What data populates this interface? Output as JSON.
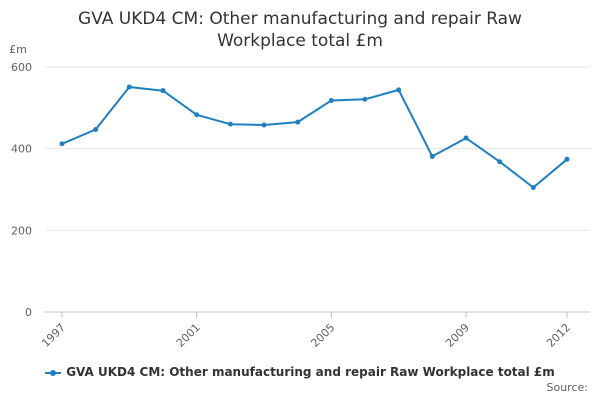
{
  "chart_data": {
    "type": "line",
    "title_line1": "GVA UKD4 CM: Other manufacturing and repair Raw",
    "title_line2": "Workplace total £m",
    "ylabel": "£m",
    "xlabel": "",
    "ylim": [
      0,
      600
    ],
    "y_ticks": [
      0,
      200,
      400,
      600
    ],
    "x_tick_labels": [
      "1997",
      "2001",
      "2005",
      "2009",
      "2012"
    ],
    "grid": true,
    "legend_position": "bottom",
    "color": "#1f7fc0",
    "series": [
      {
        "name": "GVA UKD4 CM: Other manufacturing and repair Raw Workplace total £m",
        "x": [
          1997,
          1998,
          1999,
          2000,
          2001,
          2002,
          2003,
          2004,
          2005,
          2006,
          2007,
          2008,
          2009,
          2010,
          2011,
          2012
        ],
        "values": [
          412,
          447,
          551,
          542,
          483,
          460,
          458,
          465,
          518,
          521,
          544,
          381,
          426,
          368,
          305,
          374
        ]
      }
    ]
  },
  "source_label": "Source:"
}
